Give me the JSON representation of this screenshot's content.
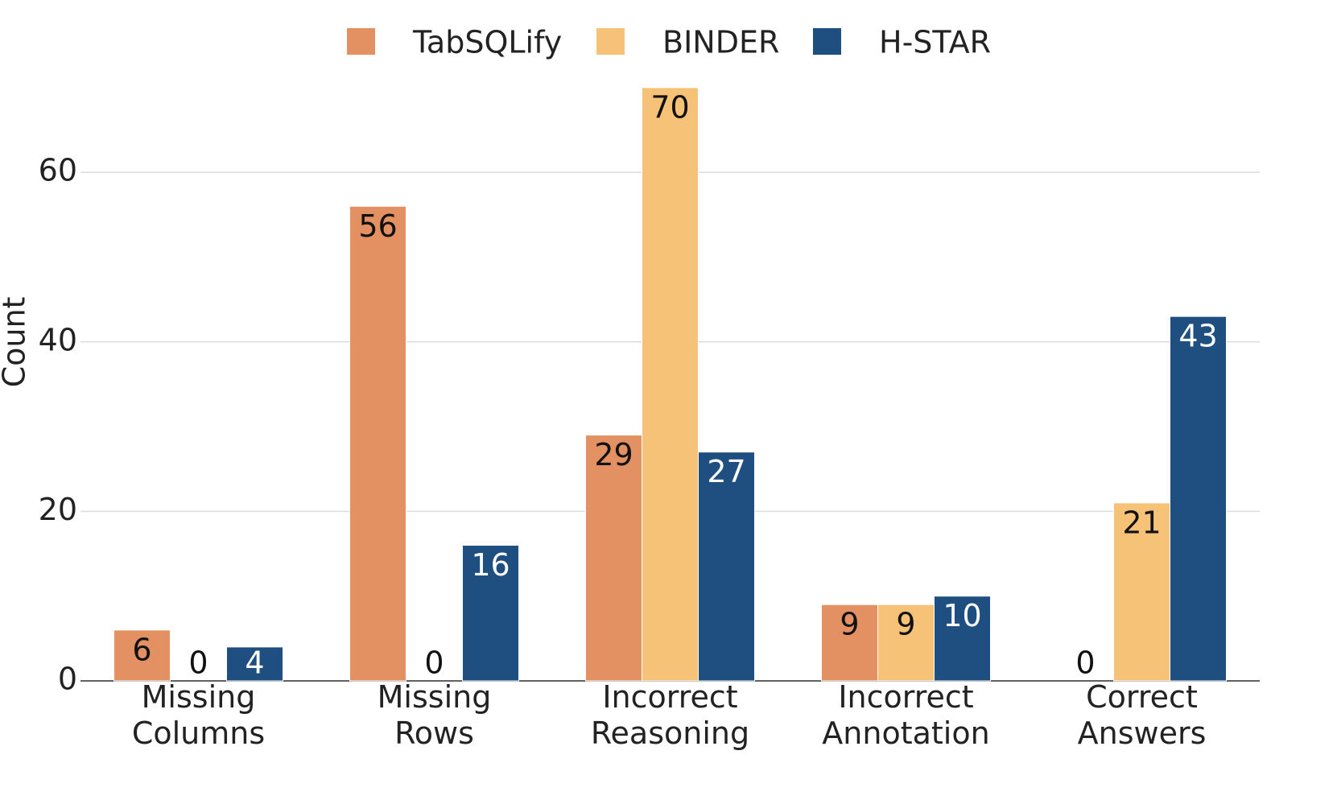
{
  "chart_data": {
    "type": "bar",
    "categories": [
      "Missing Columns",
      "Missing Rows",
      "Incorrect Reasoning",
      "Incorrect Annotation",
      "Correct Answers"
    ],
    "series": [
      {
        "name": "TabSQLify",
        "color": "#e39163",
        "values": [
          6,
          56,
          29,
          9,
          0
        ]
      },
      {
        "name": "BINDER",
        "color": "#f6c277",
        "values": [
          0,
          0,
          70,
          9,
          21
        ]
      },
      {
        "name": "H-STAR",
        "color": "#1f4e80",
        "values": [
          4,
          16,
          27,
          10,
          43
        ]
      }
    ],
    "y_label": "Count",
    "ylim": [
      0,
      73.5
    ],
    "yticks": [
      0,
      20,
      40,
      60
    ],
    "grid": true,
    "legend": "top"
  }
}
